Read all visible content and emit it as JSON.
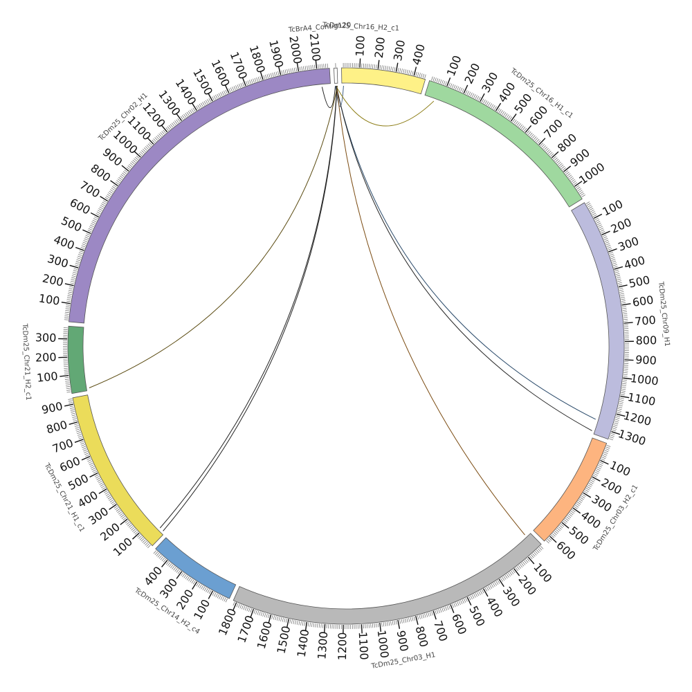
{
  "diagram": {
    "type": "circos",
    "segments": [
      {
        "name": "TcBrA4_Contig120",
        "length": 18,
        "color": "#ffffff",
        "ticks": [],
        "label_side": "ccw"
      },
      {
        "name": "TcDm25_Chr16_H2_c1",
        "length": 465,
        "color": "#fef187",
        "ticks": [
          "100",
          "200",
          "300",
          "400"
        ],
        "label_side": "cw"
      },
      {
        "name": "TcDm25_Chr16_H1_c1",
        "length": 1080,
        "color": "#9fd89f",
        "ticks": [
          "100",
          "200",
          "300",
          "400",
          "500",
          "600",
          "700",
          "800",
          "900",
          "1000"
        ],
        "label_side": "center"
      },
      {
        "name": "TcDm25_Chr09_H1",
        "length": 1345,
        "color": "#bcbcdd",
        "ticks": [
          "100",
          "200",
          "300",
          "400",
          "500",
          "600",
          "700",
          "800",
          "900",
          "1000",
          "1100",
          "1200",
          "1300"
        ],
        "label_side": "center"
      },
      {
        "name": "TcDm25_Chr03_H2_c1",
        "length": 640,
        "color": "#fdb47f",
        "ticks": [
          "100",
          "200",
          "300",
          "400",
          "500",
          "600"
        ],
        "label_side": "center"
      },
      {
        "name": "TcDm25_Chr03_H1",
        "length": 1820,
        "color": "#b9b9b9",
        "ticks": [
          "100",
          "200",
          "300",
          "400",
          "500",
          "600",
          "700",
          "800",
          "900",
          "1000",
          "1100",
          "1200",
          "1300",
          "1400",
          "1500",
          "1600",
          "1700",
          "1800"
        ],
        "label_side": "center"
      },
      {
        "name": "TcDm25_Chr14_H2_c4",
        "length": 490,
        "color": "#6b9fd1",
        "ticks": [
          "100",
          "200",
          "300",
          "400"
        ],
        "label_side": "center"
      },
      {
        "name": "TcDm25_Chr21_H1_c1",
        "length": 935,
        "color": "#ebdc5a",
        "ticks": [
          "100",
          "200",
          "300",
          "400",
          "500",
          "600",
          "700",
          "800",
          "900"
        ],
        "label_side": "center"
      },
      {
        "name": "TcDm25_Chr21_H2_c1",
        "length": 370,
        "color": "#62a875",
        "ticks": [
          "100",
          "200",
          "300"
        ],
        "label_side": "center"
      },
      {
        "name": "TcDm25_Chr02_H1",
        "length": 2170,
        "color": "#9c88c4",
        "ticks": [
          "100",
          "200",
          "300",
          "400",
          "500",
          "600",
          "700",
          "800",
          "900",
          "1000",
          "1100",
          "1200",
          "1300",
          "1400",
          "1500",
          "1600",
          "1700",
          "1800",
          "1900",
          "2000",
          "2100"
        ],
        "label_side": "center"
      }
    ],
    "links": [
      {
        "from": {
          "seg": "TcBrA4_Contig120",
          "pos": 4
        },
        "to": {
          "seg": "TcDm25_Chr02_H1",
          "pos": 2120
        },
        "color": "#222222"
      },
      {
        "from": {
          "seg": "TcBrA4_Contig120",
          "pos": 6
        },
        "to": {
          "seg": "TcDm25_Chr16_H2_c1",
          "pos": 10
        },
        "color": "#3a5a80"
      },
      {
        "from": {
          "seg": "TcBrA4_Contig120",
          "pos": 8
        },
        "to": {
          "seg": "TcDm25_Chr16_H1_c1",
          "pos": 60
        },
        "color": "#8a7a10"
      },
      {
        "from": {
          "seg": "TcBrA4_Contig120",
          "pos": 9
        },
        "to": {
          "seg": "TcDm25_Chr09_H1",
          "pos": 1260
        },
        "color": "#2a4a6a"
      },
      {
        "from": {
          "seg": "TcBrA4_Contig120",
          "pos": 10
        },
        "to": {
          "seg": "TcDm25_Chr09_H1",
          "pos": 1330
        },
        "color": "#222222"
      },
      {
        "from": {
          "seg": "TcBrA4_Contig120",
          "pos": 12
        },
        "to": {
          "seg": "TcDm25_Chr03_H1",
          "pos": 30
        },
        "color": "#7a4a10"
      },
      {
        "from": {
          "seg": "TcBrA4_Contig120",
          "pos": 13
        },
        "to": {
          "seg": "TcDm25_Chr21_H1_c1",
          "pos": 40
        },
        "color": "#222222"
      },
      {
        "from": {
          "seg": "TcBrA4_Contig120",
          "pos": 14
        },
        "to": {
          "seg": "TcDm25_Chr21_H1_c1",
          "pos": 15
        },
        "color": "#222222"
      },
      {
        "from": {
          "seg": "TcBrA4_Contig120",
          "pos": 16
        },
        "to": {
          "seg": "TcDm25_Chr21_H2_c1",
          "pos": 15
        },
        "color": "#5a4a10"
      }
    ]
  }
}
